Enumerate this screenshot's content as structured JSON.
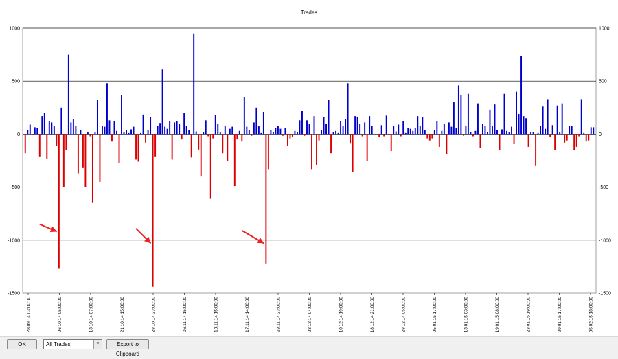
{
  "chart_data": {
    "type": "bar",
    "title": "Trades",
    "ylim": [
      -1500,
      1000
    ],
    "yticks": [
      1000,
      500,
      0,
      -500,
      -1000,
      -1500
    ],
    "grid": true,
    "colors": {
      "positive": "#0000cc",
      "negative": "#dd0000",
      "annotation": "#ee2020"
    },
    "x_tick_labels": [
      "28.09.14 03:00:00",
      "06.10.14 05:00:00",
      "13.10.14 07:00:00",
      "21.10.14 15:00:00",
      "28.10.14 23:00:00",
      "06.11.14 15:00:00",
      "18.11.14 15:00:00",
      "17.11.14 14:00:00",
      "23.11.14 23:00:00",
      "03.12.14 04:00:00",
      "10.12.14 19:00:00",
      "18.12.14 21:00:00",
      "28.12.14 05:00:00",
      "05.01.15 17:00:00",
      "13.01.15 03:00:00",
      "19.01.15 08:00:00",
      "23.01.15 19:00:00",
      "29.01.15 17:00:00",
      "05.02.15 18:00:00"
    ],
    "values": [
      -180,
      40,
      90,
      -10,
      65,
      55,
      -210,
      170,
      200,
      -230,
      125,
      110,
      80,
      -110,
      -1270,
      250,
      -500,
      -150,
      750,
      110,
      140,
      80,
      -370,
      40,
      -320,
      -500,
      15,
      -20,
      -650,
      20,
      320,
      -450,
      80,
      70,
      480,
      130,
      -70,
      120,
      30,
      -270,
      370,
      20,
      35,
      10,
      45,
      70,
      -240,
      -260,
      10,
      185,
      -80,
      40,
      160,
      -1440,
      -210,
      80,
      105,
      610,
      70,
      50,
      120,
      -240,
      110,
      120,
      100,
      -50,
      200,
      80,
      40,
      -220,
      950,
      25,
      -145,
      -400,
      15,
      130,
      -20,
      -610,
      -40,
      180,
      100,
      20,
      -180,
      80,
      -250,
      50,
      70,
      -490,
      -50,
      30,
      -70,
      350,
      70,
      40,
      -15,
      110,
      250,
      80,
      10,
      210,
      -1220,
      -330,
      40,
      20,
      60,
      75,
      50,
      -15,
      60,
      -110,
      -40,
      -30,
      30,
      20,
      130,
      220,
      -15,
      130,
      95,
      -330,
      170,
      -290,
      -60,
      40,
      160,
      100,
      320,
      -180,
      20,
      30,
      10,
      120,
      80,
      140,
      480,
      -90,
      -360,
      170,
      165,
      100,
      -20,
      110,
      -250,
      170,
      80,
      0,
      0,
      -30,
      85,
      -20,
      175,
      -10,
      -160,
      80,
      25,
      90,
      -20,
      120,
      10,
      60,
      50,
      30,
      60,
      170,
      75,
      160,
      35,
      -40,
      -60,
      -40,
      40,
      120,
      -120,
      30,
      100,
      -190,
      110,
      70,
      300,
      60,
      460,
      370,
      -15,
      80,
      380,
      20,
      -20,
      30,
      290,
      -130,
      100,
      80,
      20,
      230,
      80,
      280,
      40,
      -150,
      45,
      380,
      30,
      15,
      70,
      -95,
      400,
      190,
      740,
      170,
      150,
      -120,
      20,
      20,
      -300,
      10,
      80,
      260,
      50,
      330,
      -30,
      85,
      -150,
      270,
      20,
      290,
      -80,
      -60,
      75,
      80,
      -150,
      -120,
      -20,
      330,
      10,
      -70,
      -60,
      65,
      65
    ],
    "annotations": [
      {
        "from": [
          6,
          -850
        ],
        "to": [
          14,
          -920
        ]
      },
      {
        "from": [
          46,
          -890
        ],
        "to": [
          53,
          -1030
        ]
      },
      {
        "from": [
          90,
          -910
        ],
        "to": [
          100,
          -1030
        ]
      }
    ]
  },
  "controls": {
    "ok_label": "OK",
    "filter_value": "All Trades",
    "export_label": "Export to Clipboard"
  }
}
